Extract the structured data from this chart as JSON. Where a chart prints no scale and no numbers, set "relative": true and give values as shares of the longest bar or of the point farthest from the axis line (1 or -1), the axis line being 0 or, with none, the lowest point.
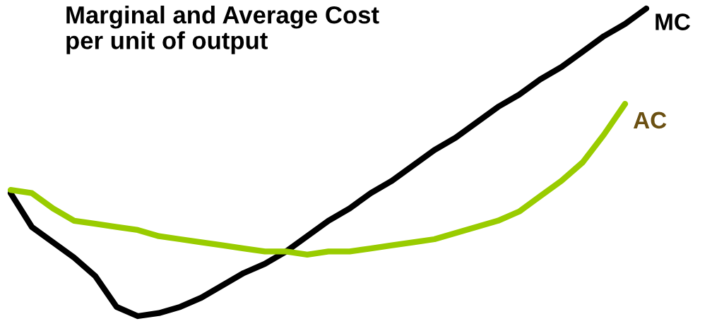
{
  "chart_data": {
    "type": "line",
    "title": "Marginal and Average Cost\nper unit of output",
    "relative": true,
    "legend": false,
    "marker": "none",
    "line_style": "solid",
    "categories": [
      null,
      null,
      null,
      null,
      null,
      null,
      null,
      null,
      null,
      null,
      null,
      null,
      null,
      null,
      null,
      null,
      null,
      null,
      null,
      null,
      null,
      null,
      null,
      null,
      null,
      null,
      null,
      null,
      null,
      null,
      null
    ],
    "series": [
      {
        "name": "MC",
        "color": "#000000",
        "values": [
          0.4,
          0.29,
          0.24,
          0.19,
          0.13,
          0.03,
          0.0,
          0.01,
          0.03,
          0.06,
          0.1,
          0.14,
          0.17,
          0.21,
          0.26,
          0.31,
          0.35,
          0.4,
          0.44,
          0.49,
          0.54,
          0.58,
          0.63,
          0.68,
          0.72,
          0.77,
          0.81,
          0.86,
          0.91,
          0.95,
          1.0
        ]
      },
      {
        "name": "AC",
        "color": "#99cc00",
        "values": [
          0.41,
          0.4,
          0.35,
          0.31,
          0.3,
          0.29,
          0.28,
          0.26,
          0.25,
          0.24,
          0.23,
          0.22,
          0.21,
          0.21,
          0.2,
          0.21,
          0.21,
          0.22,
          0.23,
          0.24,
          0.25,
          0.27,
          0.29,
          0.31,
          0.34,
          0.39,
          0.44,
          0.5,
          0.59,
          0.69,
          null
        ]
      }
    ]
  }
}
